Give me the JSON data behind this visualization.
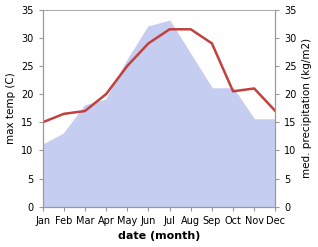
{
  "months": [
    "Jan",
    "Feb",
    "Mar",
    "Apr",
    "May",
    "Jun",
    "Jul",
    "Aug",
    "Sep",
    "Oct",
    "Nov",
    "Dec"
  ],
  "temperature": [
    15,
    16.5,
    17,
    20,
    25,
    29,
    31.5,
    31.5,
    29,
    20.5,
    21,
    17
  ],
  "precipitation": [
    11,
    13,
    18,
    19,
    26,
    32,
    33,
    27,
    21,
    21,
    15.5,
    15.5
  ],
  "temp_color": "#c0413e",
  "precip_fill_color": "#c5cdf0",
  "ylim": [
    0,
    35
  ],
  "yticks": [
    0,
    5,
    10,
    15,
    20,
    25,
    30,
    35
  ],
  "ylabel_left": "max temp (C)",
  "ylabel_right": "med. precipitation (kg/m2)",
  "xlabel": "date (month)",
  "bg_color": "#ffffff",
  "temp_linewidth": 1.8,
  "xlabel_fontsize": 8,
  "ylabel_fontsize": 7.5,
  "tick_fontsize": 7,
  "spine_color": "#999999"
}
